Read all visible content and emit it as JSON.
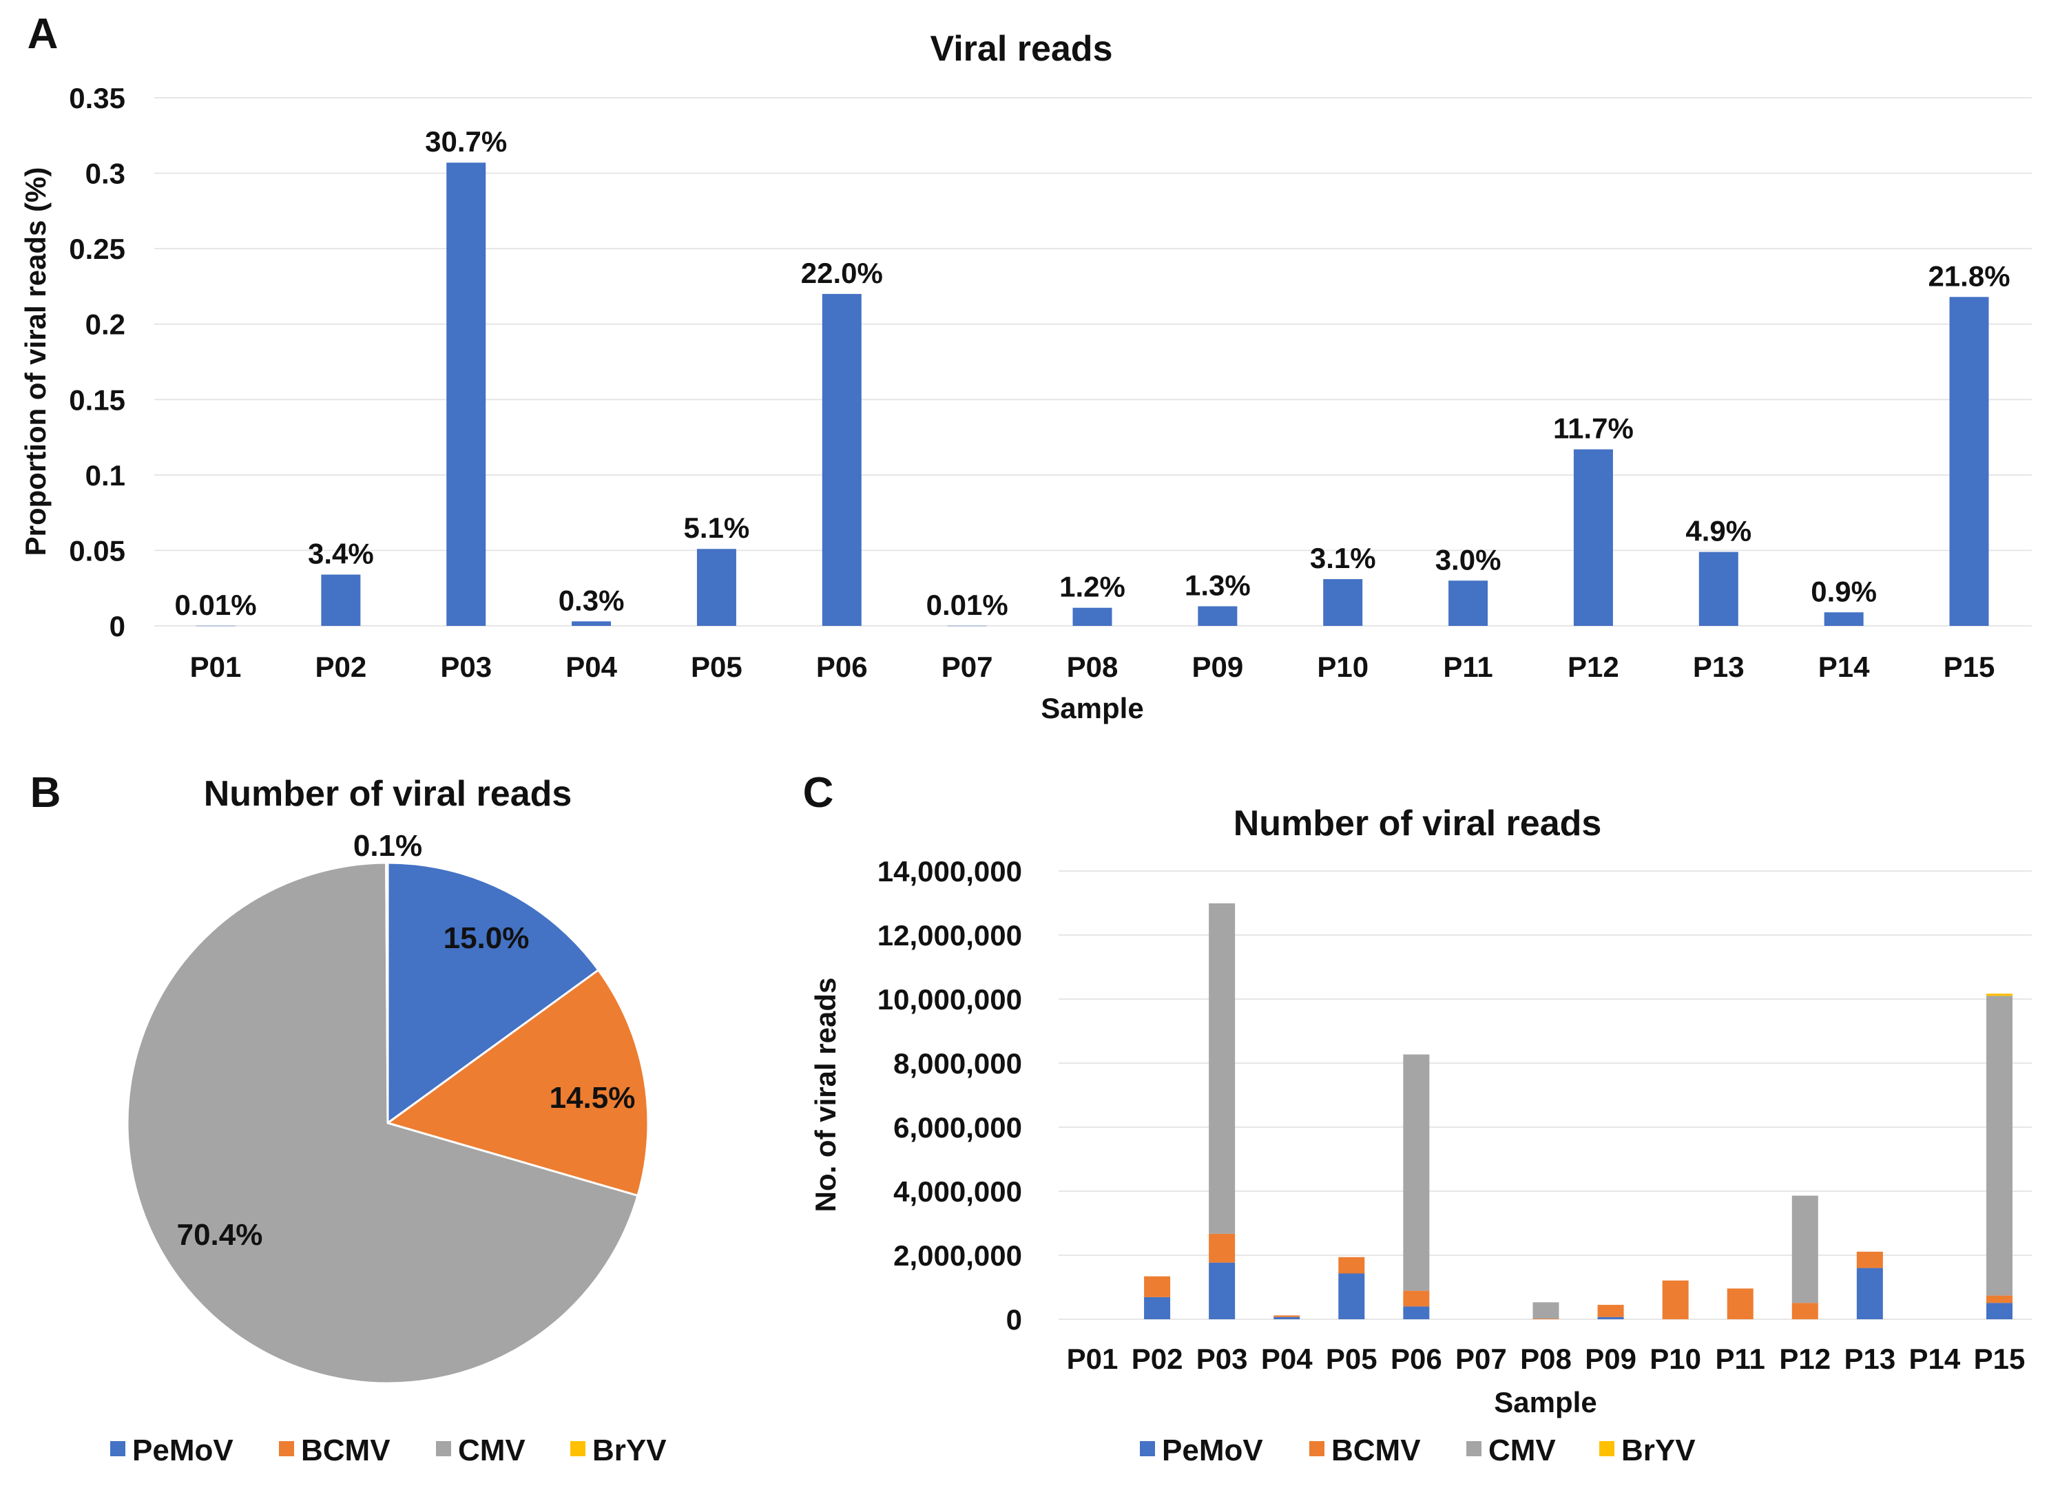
{
  "panels": {
    "a": "A",
    "b": "B",
    "c": "C"
  },
  "colors": {
    "PeMoV": "#4472C4",
    "BCMV": "#ED7D31",
    "CMV": "#A5A5A5",
    "BrYV": "#FFC000",
    "grid": "#e6e6e6"
  },
  "chart_data": [
    {
      "type": "bar",
      "title": "Viral reads",
      "xlabel": "Sample",
      "ylabel": "Proportion of viral reads (%)",
      "ylim": [
        0,
        0.35
      ],
      "yticks": [
        "0",
        "0.05",
        "0.1",
        "0.15",
        "0.2",
        "0.25",
        "0.3",
        "0.35"
      ],
      "grid": true,
      "categories": [
        "P01",
        "P02",
        "P03",
        "P04",
        "P05",
        "P06",
        "P07",
        "P08",
        "P09",
        "P10",
        "P11",
        "P12",
        "P13",
        "P14",
        "P15"
      ],
      "values": [
        0.0001,
        0.034,
        0.307,
        0.003,
        0.051,
        0.22,
        0.0001,
        0.012,
        0.013,
        0.031,
        0.03,
        0.117,
        0.049,
        0.009,
        0.218
      ],
      "data_labels": [
        "0.01%",
        "3.4%",
        "30.7%",
        "0.3%",
        "5.1%",
        "22.0%",
        "0.01%",
        "1.2%",
        "1.3%",
        "3.1%",
        "3.0%",
        "11.7%",
        "4.9%",
        "0.9%",
        "21.8%"
      ]
    },
    {
      "type": "pie",
      "title": "Number of viral reads",
      "slices": [
        {
          "name": "PeMoV",
          "value": 15.0,
          "label": "15.0%"
        },
        {
          "name": "BCMV",
          "value": 14.5,
          "label": "14.5%"
        },
        {
          "name": "CMV",
          "value": 70.4,
          "label": "70.4%"
        },
        {
          "name": "BrYV",
          "value": 0.1,
          "label": "0.1%"
        }
      ],
      "legend": "bottom"
    },
    {
      "type": "bar",
      "stacked": true,
      "title": "Number of viral reads",
      "xlabel": "Sample",
      "ylabel": "No. of viral reads",
      "ylim": [
        0,
        14000000
      ],
      "yticks": [
        "0",
        "2,000,000",
        "4,000,000",
        "6,000,000",
        "8,000,000",
        "10,000,000",
        "12,000,000",
        "14,000,000"
      ],
      "grid": true,
      "legend": "bottom",
      "categories": [
        "P01",
        "P02",
        "P03",
        "P04",
        "P05",
        "P06",
        "P07",
        "P08",
        "P09",
        "P10",
        "P11",
        "P12",
        "P13",
        "P14",
        "P15"
      ],
      "series": [
        {
          "name": "PeMoV",
          "values": [
            0,
            690000,
            1770000,
            70000,
            1430000,
            400000,
            0,
            0,
            70000,
            0,
            0,
            0,
            1600000,
            0,
            510000
          ]
        },
        {
          "name": "BCMV",
          "values": [
            0,
            650000,
            900000,
            50000,
            510000,
            490000,
            0,
            20000,
            380000,
            1210000,
            960000,
            510000,
            510000,
            0,
            230000
          ]
        },
        {
          "name": "CMV",
          "values": [
            0,
            0,
            10320000,
            0,
            0,
            7380000,
            0,
            510000,
            0,
            0,
            0,
            3350000,
            0,
            0,
            9360000
          ]
        },
        {
          "name": "BrYV",
          "values": [
            0,
            0,
            0,
            0,
            0,
            0,
            0,
            0,
            0,
            0,
            0,
            0,
            0,
            0,
            70000
          ]
        }
      ]
    }
  ]
}
